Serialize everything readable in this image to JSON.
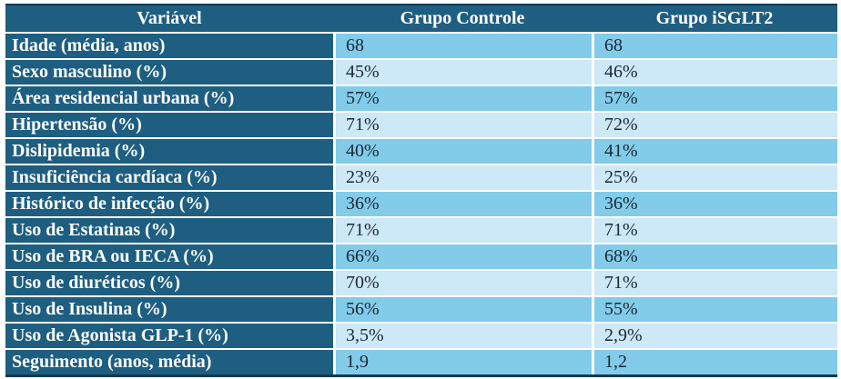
{
  "chart_data": {
    "type": "table",
    "title": "",
    "columns": [
      "Variável",
      "Grupo Controle",
      "Grupo iSGLT2"
    ],
    "categories": [
      "Idade (média, anos)",
      "Sexo masculino (%)",
      "Área residencial urbana (%)",
      "Hipertensão (%)",
      "Dislipidemia (%)",
      "Insuficiência cardíaca (%)",
      "Histórico de infecção (%)",
      "Uso de Estatinas (%)",
      "Uso de BRA ou IECA (%)",
      "Uso de diuréticos (%)",
      "Uso de Insulina (%)",
      "Uso de Agonista GLP-1 (%)",
      "Seguimento (anos, média)"
    ],
    "series": [
      {
        "name": "Grupo Controle",
        "values": [
          "68",
          "45%",
          "57%",
          "71%",
          "40%",
          "23%",
          "36%",
          "71%",
          "66%",
          "70%",
          "56%",
          "3,5%",
          "1,9"
        ]
      },
      {
        "name": "Grupo iSGLT2",
        "values": [
          "68",
          "46%",
          "57%",
          "72%",
          "41%",
          "25%",
          "36%",
          "71%",
          "68%",
          "71%",
          "55%",
          "2,9%",
          "1,2"
        ]
      }
    ],
    "layout": {
      "header_position": "top",
      "row_striping": "alternating",
      "value_alignment": "left"
    }
  },
  "colors": {
    "header_bg": "#1E5E80",
    "row_odd_bg": "#82CBE9",
    "row_even_bg": "#CDE8F6",
    "label_text": "#FFFFFF",
    "value_text": "#1B2836",
    "separator": "#FFFFFF",
    "outer_border": "#0E3A52"
  }
}
